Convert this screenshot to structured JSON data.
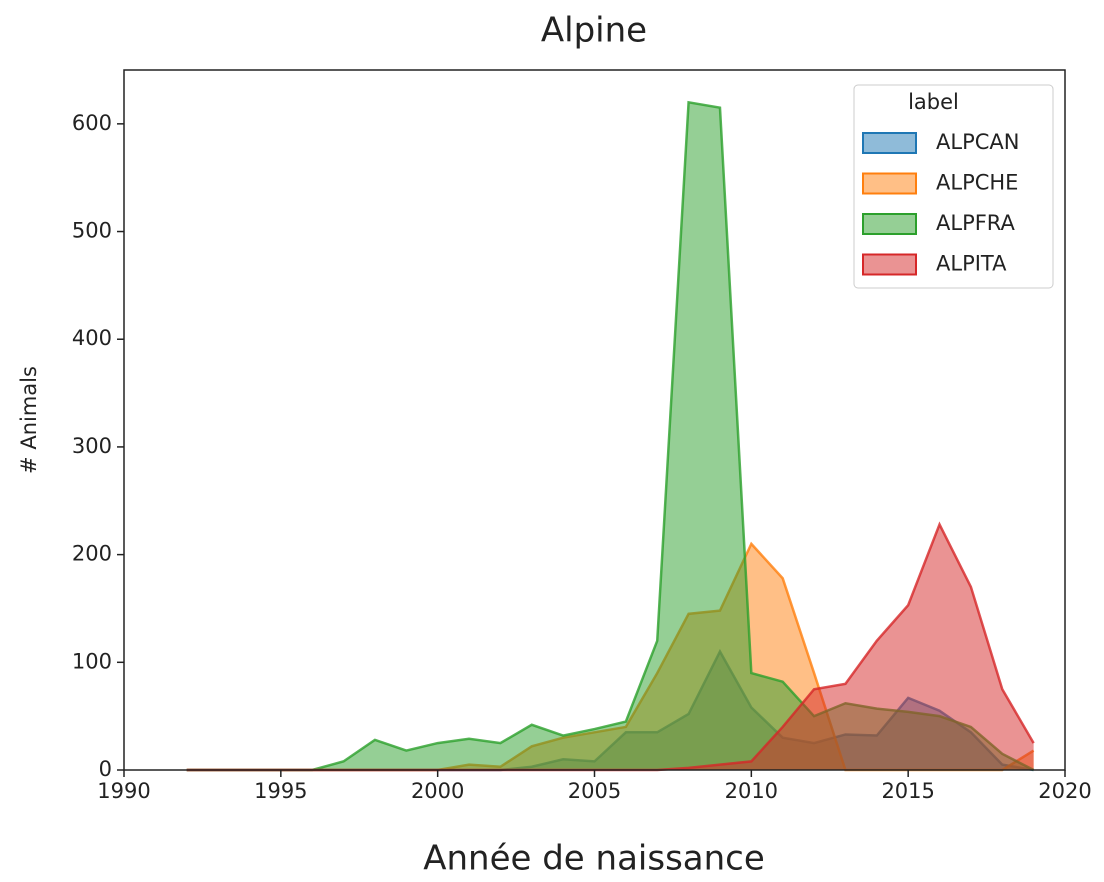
{
  "chart_data": {
    "type": "area",
    "title": "Alpine",
    "x_label": "Année de naissance",
    "y_label": "# Animals",
    "x": [
      1992,
      1993,
      1994,
      1995,
      1996,
      1997,
      1998,
      1999,
      2000,
      2001,
      2002,
      2003,
      2004,
      2005,
      2006,
      2007,
      2008,
      2009,
      2010,
      2011,
      2012,
      2013,
      2014,
      2015,
      2016,
      2017,
      2018,
      2019
    ],
    "series": [
      {
        "name": "ALPCAN",
        "color": "#1f77b4",
        "values": [
          0,
          0,
          0,
          0,
          0,
          0,
          0,
          0,
          0,
          0,
          0,
          3,
          10,
          8,
          35,
          35,
          52,
          110,
          58,
          30,
          25,
          33,
          32,
          67,
          55,
          35,
          5,
          0
        ]
      },
      {
        "name": "ALPCHE",
        "color": "#ff7f0e",
        "values": [
          0,
          0,
          0,
          0,
          0,
          0,
          0,
          0,
          0,
          5,
          3,
          22,
          30,
          35,
          40,
          90,
          145,
          148,
          210,
          178,
          90,
          0,
          0,
          0,
          0,
          0,
          0,
          18
        ]
      },
      {
        "name": "ALPFRA",
        "color": "#2ca02c",
        "values": [
          0,
          0,
          0,
          0,
          0,
          8,
          28,
          18,
          25,
          29,
          25,
          42,
          32,
          38,
          45,
          120,
          620,
          615,
          90,
          82,
          50,
          62,
          57,
          54,
          50,
          40,
          15,
          0
        ]
      },
      {
        "name": "ALPITA",
        "color": "#d62728",
        "values": [
          0,
          0,
          0,
          0,
          0,
          0,
          0,
          0,
          0,
          0,
          0,
          0,
          0,
          0,
          0,
          0,
          2,
          5,
          8,
          40,
          75,
          80,
          120,
          153,
          228,
          170,
          75,
          25
        ]
      }
    ],
    "xlim": [
      1990,
      2020
    ],
    "xticks": [
      1990,
      1995,
      2000,
      2005,
      2010,
      2015,
      2020
    ],
    "ylim": [
      0,
      650
    ],
    "yticks": [
      0,
      100,
      200,
      300,
      400,
      500,
      600
    ],
    "legend": {
      "title": "label",
      "position": "upper right"
    },
    "fill_alpha": 0.5,
    "grid": false
  }
}
